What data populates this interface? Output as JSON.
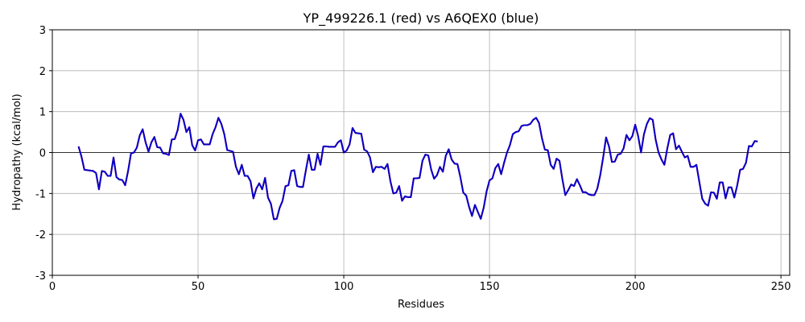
{
  "chart_data": {
    "type": "line",
    "title": "YP_499226.1 (red) vs A6QEX0 (blue)",
    "x_label": "Residues",
    "y_label": "Hydropathy (kcal/mol)",
    "xlim": [
      0,
      253
    ],
    "xticks": [
      0,
      50,
      100,
      150,
      200,
      250
    ],
    "ylim": [
      -3,
      3
    ],
    "yticks": [
      -3,
      -2,
      -1,
      0,
      1,
      2,
      3
    ],
    "grid": true,
    "zero_line": true,
    "x": [
      9,
      10,
      11,
      12,
      13,
      14,
      15,
      16,
      17,
      18,
      19,
      20,
      21,
      22,
      23,
      24,
      25,
      26,
      27,
      28,
      29,
      30,
      31,
      32,
      33,
      34,
      35,
      36,
      37,
      38,
      39,
      40,
      41,
      42,
      43,
      44,
      45,
      46,
      47,
      48,
      49,
      50,
      51,
      52,
      53,
      54,
      55,
      56,
      57,
      58,
      59,
      60,
      61,
      62,
      63,
      64,
      65,
      66,
      67,
      68,
      69,
      70,
      71,
      72,
      73,
      74,
      75,
      76,
      77,
      78,
      79,
      80,
      81,
      82,
      83,
      84,
      85,
      86,
      87,
      88,
      89,
      90,
      91,
      92,
      93,
      94,
      95,
      96,
      97,
      98,
      99,
      100,
      101,
      102,
      103,
      104,
      105,
      106,
      107,
      108,
      109,
      110,
      111,
      112,
      113,
      114,
      115,
      116,
      117,
      118,
      119,
      120,
      121,
      122,
      123,
      124,
      125,
      126,
      127,
      128,
      129,
      130,
      131,
      132,
      133,
      134,
      135,
      136,
      137,
      138,
      139,
      140,
      141,
      142,
      143,
      144,
      145,
      146,
      147,
      148,
      149,
      150,
      151,
      152,
      153,
      154,
      155,
      156,
      157,
      158,
      159,
      160,
      161,
      162,
      163,
      164,
      165,
      166,
      167,
      168,
      169,
      170,
      171,
      172,
      173,
      174,
      175,
      176,
      177,
      178,
      179,
      180,
      181,
      182,
      183,
      184,
      185,
      186,
      187,
      188,
      189,
      190,
      191,
      192,
      193,
      194,
      195,
      196,
      197,
      198,
      199,
      200,
      201,
      202,
      203,
      204,
      205,
      206,
      207,
      208,
      209,
      210,
      211,
      212,
      213,
      214,
      215,
      216,
      217,
      218,
      219,
      220,
      221,
      222,
      223,
      224,
      225,
      226,
      227,
      228,
      229,
      230,
      231,
      232,
      233,
      234,
      235,
      236,
      237,
      238,
      239,
      240,
      241,
      242
    ],
    "series": [
      {
        "name": "YP_499226.1",
        "color": "#ff0000",
        "values": [
          0.15,
          -0.1,
          -0.42,
          -0.43,
          -0.44,
          -0.45,
          -0.5,
          -0.9,
          -0.45,
          -0.47,
          -0.57,
          -0.57,
          -0.12,
          -0.6,
          -0.66,
          -0.67,
          -0.8,
          -0.45,
          -0.02,
          0.0,
          0.12,
          0.42,
          0.57,
          0.25,
          0.02,
          0.25,
          0.38,
          0.13,
          0.12,
          -0.02,
          -0.03,
          -0.06,
          0.32,
          0.33,
          0.55,
          0.95,
          0.8,
          0.5,
          0.62,
          0.18,
          0.05,
          0.3,
          0.32,
          0.2,
          0.2,
          0.2,
          0.45,
          0.62,
          0.85,
          0.7,
          0.45,
          0.06,
          0.04,
          0.02,
          -0.35,
          -0.53,
          -0.3,
          -0.57,
          -0.57,
          -0.7,
          -1.12,
          -0.88,
          -0.75,
          -0.9,
          -0.62,
          -1.1,
          -1.25,
          -1.63,
          -1.62,
          -1.35,
          -1.18,
          -0.82,
          -0.8,
          -0.45,
          -0.43,
          -0.82,
          -0.84,
          -0.84,
          -0.43,
          -0.05,
          -0.42,
          -0.42,
          -0.03,
          -0.3,
          0.15,
          0.15,
          0.14,
          0.14,
          0.14,
          0.25,
          0.3,
          0.0,
          0.05,
          0.2,
          0.6,
          0.48,
          0.47,
          0.46,
          0.07,
          0.03,
          -0.12,
          -0.48,
          -0.35,
          -0.36,
          -0.35,
          -0.4,
          -0.28,
          -0.7,
          -1.0,
          -0.98,
          -0.82,
          -1.18,
          -1.07,
          -1.09,
          -1.09,
          -0.63,
          -0.63,
          -0.62,
          -0.2,
          -0.05,
          -0.07,
          -0.42,
          -0.64,
          -0.55,
          -0.35,
          -0.47,
          -0.08,
          0.08,
          -0.17,
          -0.27,
          -0.28,
          -0.6,
          -0.98,
          -1.05,
          -1.33,
          -1.55,
          -1.28,
          -1.45,
          -1.62,
          -1.35,
          -0.95,
          -0.68,
          -0.63,
          -0.38,
          -0.28,
          -0.53,
          -0.25,
          0.0,
          0.18,
          0.45,
          0.5,
          0.52,
          0.65,
          0.67,
          0.67,
          0.7,
          0.8,
          0.85,
          0.72,
          0.35,
          0.07,
          0.06,
          -0.3,
          -0.4,
          -0.15,
          -0.2,
          -0.65,
          -1.04,
          -0.92,
          -0.78,
          -0.82,
          -0.65,
          -0.8,
          -0.97,
          -0.97,
          -1.02,
          -1.04,
          -1.04,
          -0.88,
          -0.55,
          -0.12,
          0.37,
          0.15,
          -0.23,
          -0.22,
          -0.05,
          -0.03,
          0.1,
          0.43,
          0.3,
          0.4,
          0.68,
          0.4,
          0.0,
          0.45,
          0.7,
          0.84,
          0.8,
          0.32,
          0.0,
          -0.17,
          -0.3,
          0.1,
          0.43,
          0.47,
          0.08,
          0.17,
          0.02,
          -0.12,
          -0.08,
          -0.35,
          -0.35,
          -0.3,
          -0.72,
          -1.13,
          -1.25,
          -1.3,
          -0.97,
          -0.98,
          -1.13,
          -0.73,
          -0.73,
          -1.12,
          -0.85,
          -0.85,
          -1.1,
          -0.8,
          -0.42,
          -0.4,
          -0.25,
          0.16,
          0.15,
          0.28,
          0.27
        ]
      },
      {
        "name": "A6QEX0",
        "color": "#0000cc",
        "values": [
          0.15,
          -0.1,
          -0.42,
          -0.43,
          -0.44,
          -0.45,
          -0.5,
          -0.9,
          -0.45,
          -0.47,
          -0.57,
          -0.57,
          -0.12,
          -0.6,
          -0.66,
          -0.67,
          -0.8,
          -0.45,
          -0.02,
          0.0,
          0.12,
          0.42,
          0.57,
          0.25,
          0.02,
          0.25,
          0.38,
          0.13,
          0.12,
          -0.02,
          -0.03,
          -0.06,
          0.32,
          0.33,
          0.55,
          0.95,
          0.8,
          0.5,
          0.62,
          0.18,
          0.05,
          0.3,
          0.32,
          0.2,
          0.2,
          0.2,
          0.45,
          0.62,
          0.85,
          0.7,
          0.45,
          0.06,
          0.04,
          0.02,
          -0.35,
          -0.53,
          -0.3,
          -0.57,
          -0.57,
          -0.7,
          -1.12,
          -0.88,
          -0.75,
          -0.9,
          -0.62,
          -1.1,
          -1.25,
          -1.63,
          -1.62,
          -1.35,
          -1.18,
          -0.82,
          -0.8,
          -0.45,
          -0.43,
          -0.82,
          -0.84,
          -0.84,
          -0.43,
          -0.05,
          -0.42,
          -0.42,
          -0.03,
          -0.3,
          0.15,
          0.15,
          0.14,
          0.14,
          0.14,
          0.25,
          0.3,
          0.0,
          0.05,
          0.2,
          0.6,
          0.48,
          0.47,
          0.46,
          0.07,
          0.03,
          -0.12,
          -0.48,
          -0.35,
          -0.36,
          -0.35,
          -0.4,
          -0.28,
          -0.7,
          -1.0,
          -0.98,
          -0.82,
          -1.18,
          -1.07,
          -1.09,
          -1.09,
          -0.63,
          -0.63,
          -0.62,
          -0.2,
          -0.05,
          -0.07,
          -0.42,
          -0.64,
          -0.55,
          -0.35,
          -0.47,
          -0.08,
          0.08,
          -0.17,
          -0.27,
          -0.28,
          -0.6,
          -0.98,
          -1.05,
          -1.33,
          -1.55,
          -1.28,
          -1.45,
          -1.62,
          -1.35,
          -0.95,
          -0.68,
          -0.63,
          -0.38,
          -0.28,
          -0.53,
          -0.25,
          0.0,
          0.18,
          0.45,
          0.5,
          0.52,
          0.65,
          0.67,
          0.67,
          0.7,
          0.8,
          0.85,
          0.72,
          0.35,
          0.07,
          0.06,
          -0.3,
          -0.4,
          -0.15,
          -0.2,
          -0.65,
          -1.04,
          -0.92,
          -0.78,
          -0.82,
          -0.65,
          -0.8,
          -0.97,
          -0.97,
          -1.02,
          -1.04,
          -1.04,
          -0.88,
          -0.55,
          -0.12,
          0.37,
          0.15,
          -0.23,
          -0.22,
          -0.05,
          -0.03,
          0.1,
          0.43,
          0.3,
          0.4,
          0.68,
          0.4,
          0.0,
          0.45,
          0.7,
          0.84,
          0.8,
          0.32,
          0.0,
          -0.17,
          -0.3,
          0.1,
          0.43,
          0.47,
          0.08,
          0.17,
          0.02,
          -0.12,
          -0.08,
          -0.35,
          -0.35,
          -0.3,
          -0.72,
          -1.13,
          -1.25,
          -1.3,
          -0.97,
          -0.98,
          -1.13,
          -0.73,
          -0.73,
          -1.12,
          -0.85,
          -0.85,
          -1.1,
          -0.8,
          -0.42,
          -0.4,
          -0.25,
          0.16,
          0.15,
          0.28,
          0.27
        ]
      }
    ]
  }
}
